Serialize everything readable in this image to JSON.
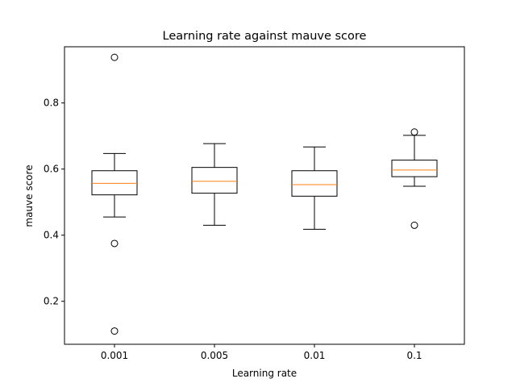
{
  "chart_data": {
    "type": "box",
    "title": "Learning rate against mauve score",
    "xlabel": "Learning rate",
    "ylabel": "mauve score",
    "ylim": [
      0.07,
      0.97
    ],
    "yticks": [
      0.2,
      0.4,
      0.6,
      0.8
    ],
    "ytick_labels": [
      "0.2",
      "0.4",
      "0.6",
      "0.8"
    ],
    "grid": false,
    "legend": "none",
    "categories": [
      "0.001",
      "0.005",
      "0.01",
      "0.1"
    ],
    "boxes": [
      {
        "category": "0.001",
        "whisker_low": 0.455,
        "q1": 0.522,
        "median": 0.557,
        "q3": 0.595,
        "whisker_high": 0.647,
        "outliers": [
          0.938,
          0.375,
          0.11
        ]
      },
      {
        "category": "0.005",
        "whisker_low": 0.43,
        "q1": 0.527,
        "median": 0.563,
        "q3": 0.605,
        "whisker_high": 0.677,
        "outliers": []
      },
      {
        "category": "0.01",
        "whisker_low": 0.418,
        "q1": 0.518,
        "median": 0.553,
        "q3": 0.595,
        "whisker_high": 0.667,
        "outliers": []
      },
      {
        "category": "0.1",
        "whisker_low": 0.548,
        "q1": 0.577,
        "median": 0.597,
        "q3": 0.627,
        "whisker_high": 0.702,
        "outliers": [
          0.712,
          0.43
        ]
      }
    ],
    "colors": {
      "box": "#000000",
      "median": "#ff7f0e",
      "axes": "#000000",
      "background": "#ffffff"
    }
  }
}
